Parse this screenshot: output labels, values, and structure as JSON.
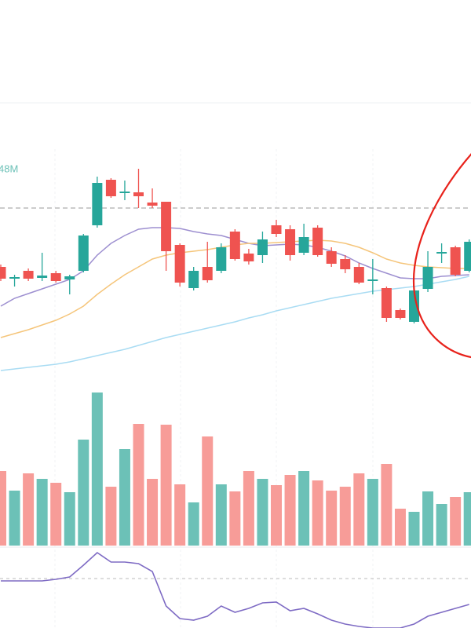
{
  "chart_data": {
    "type": "candlestick",
    "volume_label": "48M",
    "categories": [
      null,
      null,
      null,
      null,
      null,
      null,
      null,
      null,
      null,
      null,
      null,
      null,
      null,
      null,
      null,
      null,
      null,
      null,
      null,
      null,
      null,
      null,
      null,
      null,
      null,
      null,
      null,
      null,
      null,
      null,
      null,
      null,
      null,
      null,
      null
    ],
    "open": [
      16,
      14.5,
      15.5,
      14.6,
      15.2,
      14.4,
      15.5,
      21.3,
      27.1,
      25.4,
      25.5,
      24.2,
      24.3,
      18.8,
      13.3,
      16,
      15.5,
      20.5,
      17.7,
      17.5,
      21.3,
      20.8,
      17.8,
      21,
      18,
      17,
      16,
      14.2,
      13.3,
      10.5,
      9,
      13.2,
      17.7,
      18.5,
      15.5
    ],
    "high": [
      16.3,
      15,
      15.8,
      17.8,
      15.5,
      15,
      20.2,
      27.5,
      27.3,
      27,
      28.5,
      26,
      24.3,
      19,
      16,
      19.2,
      19,
      20.8,
      18.3,
      20.5,
      22,
      21.3,
      21.5,
      21.3,
      18.5,
      17.5,
      16.5,
      17,
      13.5,
      10.7,
      13.5,
      18,
      19,
      18.7,
      19.5
    ],
    "low": [
      14.2,
      13.5,
      14.2,
      14.2,
      14,
      12.5,
      15.3,
      21,
      24.8,
      24.5,
      23.5,
      23.5,
      15.5,
      13.5,
      13,
      14,
      15.2,
      16.8,
      16.3,
      16.5,
      19.8,
      16.8,
      17.5,
      17.3,
      16,
      15.2,
      13.8,
      12.5,
      9,
      9.3,
      8.8,
      12.8,
      16.5,
      14.8,
      15.3
    ],
    "close": [
      14.5,
      14.7,
      14.5,
      14.9,
      14.2,
      14.8,
      20,
      26.7,
      25,
      25.6,
      25,
      23.8,
      18,
      14,
      15.5,
      14.3,
      18.5,
      17,
      16.7,
      19.5,
      20.2,
      17.5,
      19.8,
      17.5,
      16.4,
      15.7,
      14,
      14.4,
      9.5,
      9.5,
      13,
      16,
      17.9,
      15,
      19.2
    ],
    "up_color": "#26a69a",
    "down_color": "#ef5350",
    "ylim": [
      0,
      30
    ],
    "price_line": 23.5,
    "moving_averages": [
      {
        "color": "#9d8fd0",
        "values": [
          11,
          12,
          12.6,
          13.2,
          13.8,
          14.4,
          15.5,
          17.5,
          19,
          20,
          20.8,
          21,
          21,
          20.9,
          20.5,
          20.2,
          20,
          19.5,
          19,
          18.7,
          18.8,
          18.9,
          18.8,
          18.5,
          18,
          17.4,
          16.5,
          15.8,
          15.2,
          14.6,
          14.5,
          14.5,
          14.8,
          14.9,
          15
        ]
      },
      {
        "color": "#f5c57a",
        "values": [
          7,
          7.5,
          8,
          8.6,
          9.2,
          10,
          11,
          12.5,
          13.8,
          15,
          16,
          17,
          17.5,
          17.8,
          18,
          18.2,
          18.5,
          18.8,
          19,
          19,
          19.1,
          19.2,
          19.3,
          19.4,
          19.3,
          19,
          18.5,
          17.8,
          17,
          16.5,
          16.2,
          16,
          15.9,
          15.8,
          15.8
        ]
      },
      {
        "color": "#a9dcf3",
        "values": [
          2.8,
          3,
          3.2,
          3.4,
          3.6,
          3.9,
          4.3,
          4.7,
          5.1,
          5.5,
          6,
          6.5,
          7,
          7.4,
          7.8,
          8.2,
          8.6,
          9,
          9.5,
          9.9,
          10.4,
          10.8,
          11.2,
          11.6,
          12,
          12.3,
          12.6,
          12.9,
          13.1,
          13.3,
          13.5,
          13.8,
          14.1,
          14.4,
          14.8
        ]
      }
    ],
    "volume": {
      "values": [
        95,
        70,
        92,
        85,
        80,
        68,
        135,
        195,
        75,
        123,
        155,
        85,
        154,
        78,
        55,
        139,
        78,
        69,
        95,
        85,
        77,
        90,
        95,
        83,
        70,
        75,
        92,
        85,
        104,
        47,
        43,
        69,
        53,
        62,
        68
      ],
      "ylim": [
        0,
        200
      ],
      "up_color": "#6cc1b7",
      "down_color": "#f79c98"
    },
    "indicator": {
      "values": [
        60,
        60,
        60,
        60,
        62,
        65,
        80,
        96,
        84,
        84,
        82,
        72,
        28,
        12,
        10,
        15,
        28,
        20,
        25,
        32,
        33,
        22,
        25,
        18,
        10,
        5,
        2,
        0,
        0,
        0,
        5,
        15,
        20,
        25,
        30
      ],
      "ylim": [
        0,
        100
      ],
      "color": "#7e6bc4",
      "reference_line": 63
    }
  }
}
